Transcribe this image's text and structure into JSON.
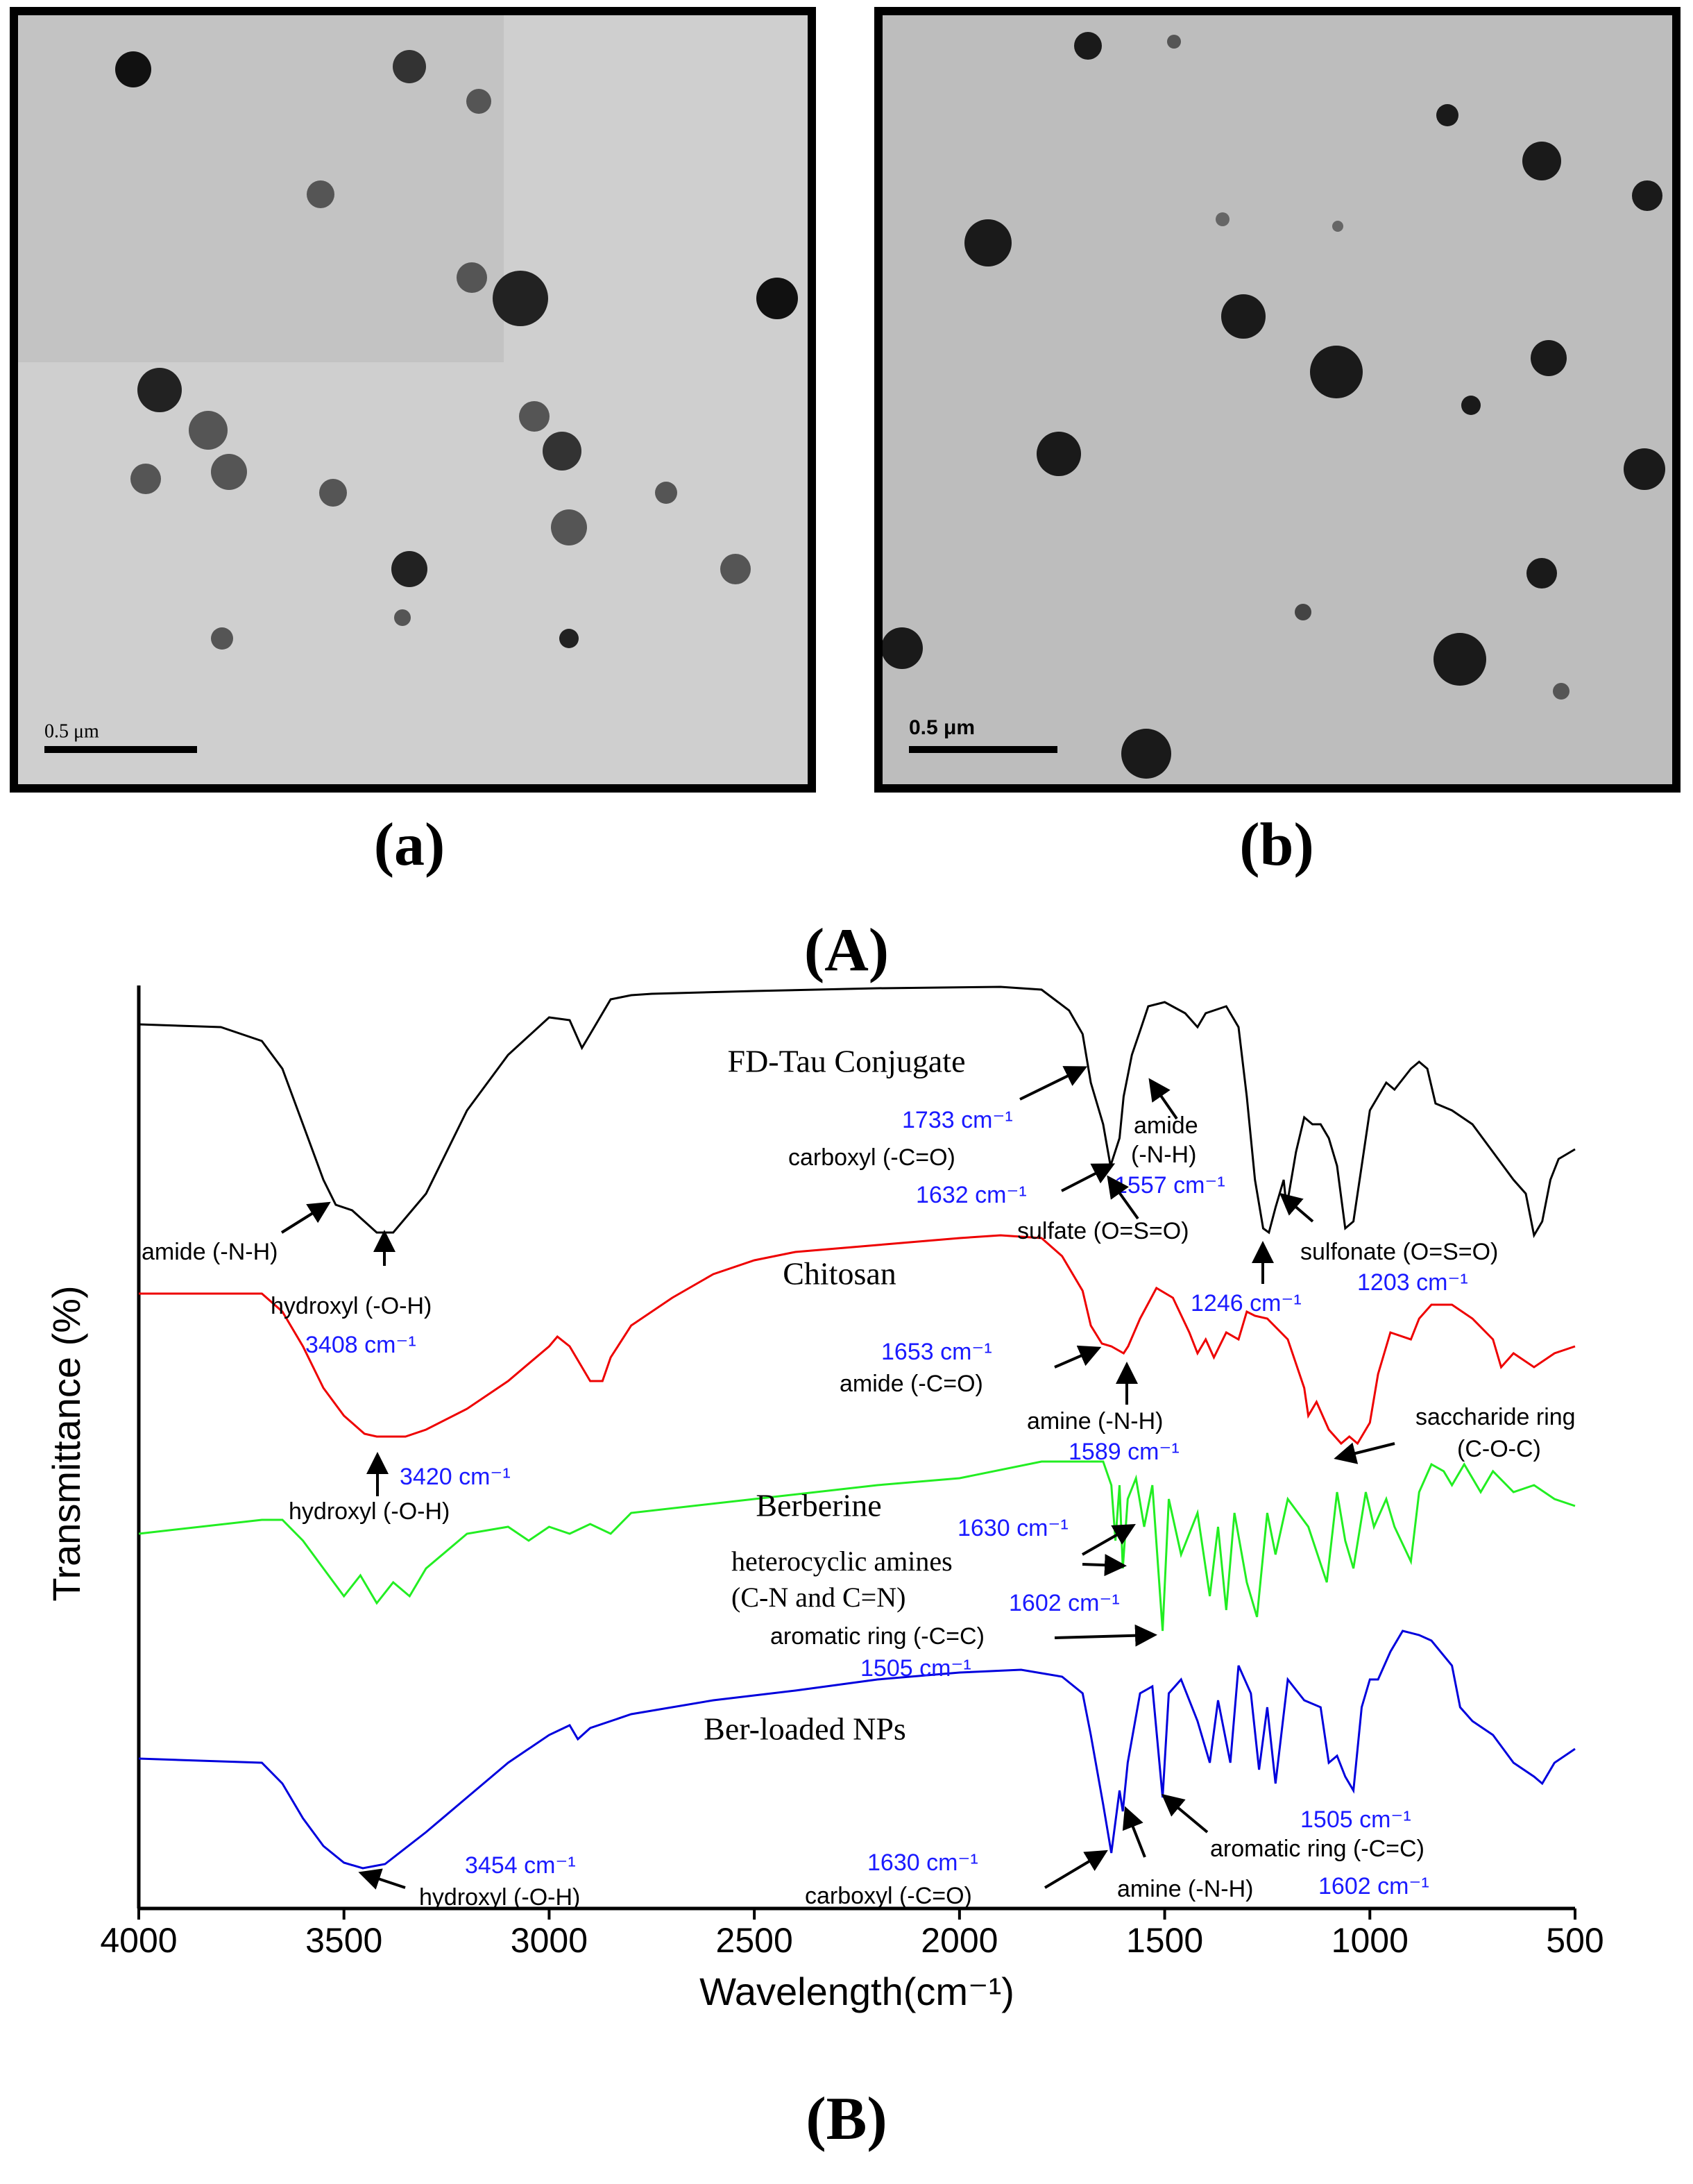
{
  "figure": {
    "labels": {
      "a": "(a)",
      "b": "(b)",
      "A": "(A)",
      "B": "(B)"
    },
    "scale_bars": [
      "0.5 μm",
      "0.5 μm"
    ]
  },
  "chart_data": {
    "type": "line",
    "xlabel": "Wavelength(cm⁻¹)",
    "ylabel": "Transmittance (%)",
    "xlim": [
      4000,
      500
    ],
    "ylim": [
      0,
      665
    ],
    "xticks": [
      4000,
      3500,
      3000,
      2500,
      2000,
      1500,
      1000,
      500
    ],
    "series": [
      {
        "name": "FD-Tau Conjugate",
        "color": "#000000",
        "x": [
          4000,
          3800,
          3700,
          3650,
          3600,
          3550,
          3520,
          3480,
          3420,
          3380,
          3300,
          3200,
          3100,
          3000,
          2950,
          2920,
          2900,
          2850,
          2800,
          2750,
          2500,
          2200,
          1900,
          1800,
          1733,
          1700,
          1680,
          1650,
          1632,
          1610,
          1600,
          1580,
          1557,
          1540,
          1500,
          1450,
          1420,
          1400,
          1350,
          1320,
          1300,
          1280,
          1260,
          1246,
          1230,
          1210,
          1203,
          1180,
          1160,
          1140,
          1120,
          1100,
          1080,
          1060,
          1040,
          1020,
          1000,
          980,
          960,
          940,
          900,
          880,
          860,
          840,
          800,
          750,
          700,
          650,
          620,
          600,
          580,
          560,
          540,
          500
        ],
        "values": [
          637,
          635,
          625,
          605,
          565,
          525,
          507,
          503,
          487,
          487,
          515,
          575,
          615,
          642,
          640,
          620,
          630,
          655,
          658,
          659,
          661,
          663,
          664,
          662,
          647,
          630,
          595,
          565,
          535,
          555,
          585,
          615,
          635,
          650,
          653,
          645,
          635,
          645,
          650,
          635,
          585,
          525,
          490,
          487,
          505,
          525,
          505,
          545,
          570,
          565,
          565,
          555,
          535,
          490,
          495,
          535,
          575,
          585,
          595,
          590,
          605,
          610,
          605,
          580,
          575,
          565,
          545,
          525,
          515,
          485,
          495,
          525,
          540,
          547
        ]
      },
      {
        "name": "Chitosan",
        "color": "#ee0000",
        "x": [
          4000,
          3700,
          3650,
          3600,
          3550,
          3500,
          3450,
          3420,
          3350,
          3300,
          3200,
          3100,
          3000,
          2980,
          2950,
          2900,
          2870,
          2850,
          2800,
          2700,
          2600,
          2500,
          2400,
          2200,
          2000,
          1900,
          1800,
          1750,
          1700,
          1680,
          1653,
          1630,
          1600,
          1589,
          1560,
          1520,
          1480,
          1440,
          1420,
          1400,
          1380,
          1350,
          1320,
          1300,
          1280,
          1250,
          1200,
          1160,
          1150,
          1130,
          1100,
          1070,
          1050,
          1030,
          1000,
          980,
          950,
          900,
          880,
          850,
          800,
          750,
          700,
          680,
          650,
          600,
          550,
          500
        ],
        "values": [
          443,
          443,
          430,
          405,
          375,
          355,
          342,
          340,
          340,
          345,
          360,
          380,
          405,
          412,
          405,
          380,
          380,
          397,
          420,
          440,
          457,
          467,
          473,
          478,
          483,
          485,
          483,
          470,
          445,
          420,
          407,
          405,
          400,
          405,
          425,
          447,
          440,
          415,
          400,
          410,
          397,
          415,
          410,
          430,
          427,
          425,
          410,
          375,
          355,
          365,
          345,
          335,
          340,
          335,
          350,
          385,
          415,
          410,
          425,
          435,
          435,
          425,
          410,
          390,
          400,
          390,
          400,
          405
        ]
      },
      {
        "name": "Berberine",
        "color": "#22ee22",
        "x": [
          4000,
          3700,
          3650,
          3600,
          3550,
          3500,
          3460,
          3420,
          3380,
          3340,
          3300,
          3200,
          3100,
          3050,
          3000,
          2950,
          2900,
          2850,
          2800,
          2500,
          2200,
          2000,
          1800,
          1650,
          1630,
          1620,
          1610,
          1602,
          1590,
          1570,
          1550,
          1530,
          1505,
          1490,
          1460,
          1420,
          1390,
          1370,
          1350,
          1330,
          1300,
          1275,
          1250,
          1230,
          1200,
          1150,
          1105,
          1080,
          1060,
          1040,
          1010,
          990,
          960,
          940,
          900,
          880,
          850,
          820,
          800,
          770,
          730,
          700,
          650,
          600,
          550,
          500
        ],
        "values": [
          270,
          280,
          280,
          265,
          245,
          225,
          240,
          220,
          235,
          225,
          245,
          270,
          275,
          265,
          275,
          270,
          277,
          270,
          285,
          295,
          305,
          310,
          322,
          322,
          305,
          265,
          305,
          245,
          295,
          310,
          275,
          305,
          200,
          295,
          255,
          285,
          225,
          275,
          215,
          285,
          235,
          210,
          285,
          255,
          295,
          275,
          235,
          300,
          265,
          245,
          300,
          275,
          295,
          275,
          250,
          300,
          320,
          315,
          305,
          320,
          300,
          315,
          300,
          305,
          295,
          290
        ]
      },
      {
        "name": "Ber-loaded NPs",
        "color": "#0000dd",
        "x": [
          4000,
          3700,
          3650,
          3600,
          3550,
          3500,
          3454,
          3400,
          3300,
          3200,
          3100,
          3000,
          2950,
          2930,
          2900,
          2800,
          2600,
          2400,
          2200,
          2000,
          1850,
          1750,
          1700,
          1680,
          1650,
          1630,
          1610,
          1602,
          1590,
          1560,
          1530,
          1505,
          1490,
          1460,
          1420,
          1390,
          1370,
          1340,
          1320,
          1290,
          1270,
          1250,
          1230,
          1200,
          1160,
          1120,
          1100,
          1080,
          1060,
          1040,
          1020,
          1000,
          980,
          950,
          920,
          880,
          850,
          800,
          780,
          750,
          700,
          650,
          600,
          580,
          550,
          500
        ],
        "values": [
          108,
          105,
          90,
          65,
          45,
          33,
          29,
          32,
          55,
          80,
          105,
          125,
          132,
          122,
          130,
          140,
          150,
          157,
          165,
          170,
          172,
          167,
          155,
          125,
          75,
          40,
          85,
          70,
          105,
          155,
          160,
          80,
          155,
          165,
          135,
          105,
          150,
          105,
          175,
          155,
          100,
          145,
          90,
          165,
          150,
          145,
          105,
          110,
          95,
          85,
          145,
          165,
          165,
          185,
          200,
          197,
          193,
          175,
          145,
          135,
          125,
          105,
          95,
          90,
          105,
          115
        ]
      }
    ],
    "annotations": [
      {
        "text": "1733 cm⁻¹",
        "color": "#1a1aff"
      },
      {
        "text": "carboxyl (-C=O)",
        "color": "#000000"
      },
      {
        "text": "amide",
        "color": "#000000"
      },
      {
        "text": "(-N-H)",
        "color": "#000000"
      },
      {
        "text": "1632 cm⁻¹",
        "color": "#1a1aff"
      },
      {
        "text": "1557 cm⁻¹",
        "color": "#1a1aff"
      },
      {
        "text": "amide (-N-H)",
        "color": "#000000"
      },
      {
        "text": "sulfate (O=S=O)",
        "color": "#000000"
      },
      {
        "text": "sulfonate (O=S=O)",
        "color": "#000000"
      },
      {
        "text": "hydroxyl (-O-H)",
        "color": "#000000"
      },
      {
        "text": "1246 cm⁻¹",
        "color": "#1a1aff"
      },
      {
        "text": "1203 cm⁻¹",
        "color": "#1a1aff"
      },
      {
        "text": "3408 cm⁻¹",
        "color": "#1a1aff"
      },
      {
        "text": "1653 cm⁻¹",
        "color": "#1a1aff"
      },
      {
        "text": "amide (-C=O)",
        "color": "#000000"
      },
      {
        "text": "amine (-N-H)",
        "color": "#000000"
      },
      {
        "text": "1589 cm⁻¹",
        "color": "#1a1aff"
      },
      {
        "text": "saccharide ring",
        "color": "#000000"
      },
      {
        "text": "(C-O-C)",
        "color": "#000000"
      },
      {
        "text": "3420 cm⁻¹",
        "color": "#1a1aff"
      },
      {
        "text": "hydroxyl (-O-H)",
        "color": "#000000"
      },
      {
        "text": "1630 cm⁻¹",
        "color": "#1a1aff"
      },
      {
        "text": "heterocyclic amines",
        "color": "#000000"
      },
      {
        "text": "(C-N and C=N)",
        "color": "#000000"
      },
      {
        "text": "1602 cm⁻¹",
        "color": "#1a1aff"
      },
      {
        "text": "aromatic ring (-C=C)",
        "color": "#000000"
      },
      {
        "text": "1505 cm⁻¹",
        "color": "#1a1aff"
      },
      {
        "text": "3454 cm⁻¹",
        "color": "#1a1aff"
      },
      {
        "text": "hydroxyl (-O-H)",
        "color": "#000000"
      },
      {
        "text": "1630 cm⁻¹",
        "color": "#1a1aff"
      },
      {
        "text": "carboxyl (-C=O)",
        "color": "#000000"
      },
      {
        "text": "amine (-N-H)",
        "color": "#000000"
      },
      {
        "text": "1505 cm⁻¹",
        "color": "#1a1aff"
      },
      {
        "text": "aromatic ring (-C=C)",
        "color": "#000000"
      },
      {
        "text": "1602 cm⁻¹",
        "color": "#1a1aff"
      }
    ]
  }
}
